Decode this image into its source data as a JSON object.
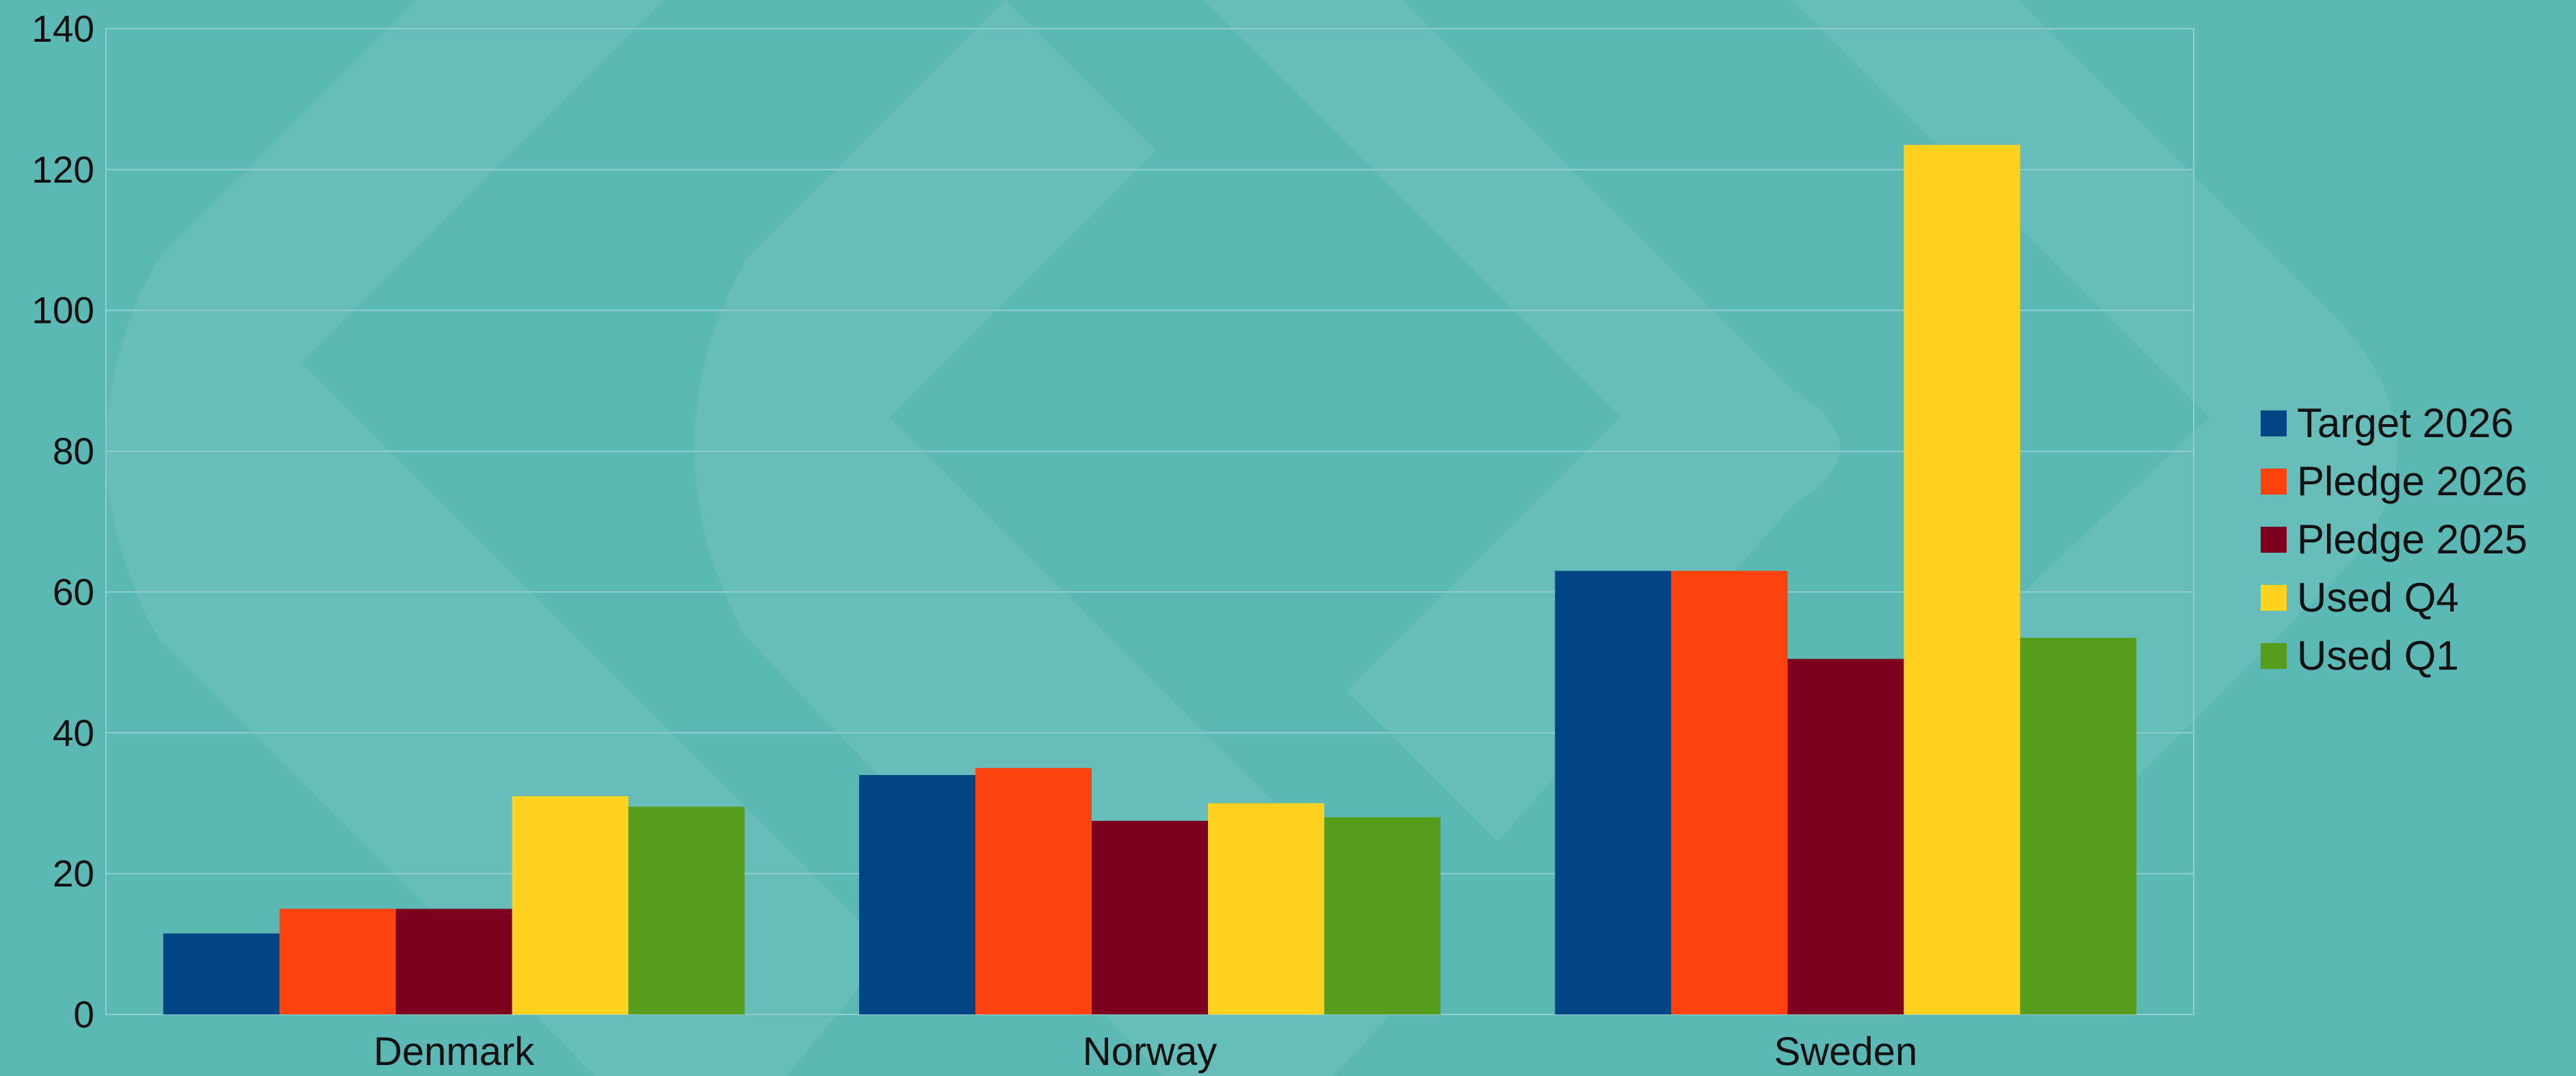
{
  "chart_data": {
    "type": "bar",
    "title": "",
    "xlabel": "",
    "ylabel": "",
    "categories": [
      "Denmark",
      "Norway",
      "Sweden"
    ],
    "ylim": [
      0,
      140
    ],
    "yticks": [
      0,
      20,
      40,
      60,
      80,
      100,
      120,
      140
    ],
    "grid": true,
    "legend_position": "right",
    "series": [
      {
        "name": "Target 2026",
        "color": "#004586",
        "values": [
          11.5,
          34,
          63
        ]
      },
      {
        "name": "Pledge 2026",
        "color": "#ff420e",
        "values": [
          15,
          35,
          63
        ]
      },
      {
        "name": "Pledge 2025",
        "color": "#7e0021",
        "values": [
          15,
          27.5,
          50.5
        ]
      },
      {
        "name": "Used Q4",
        "color": "#ffd320",
        "values": [
          31,
          30,
          123.5
        ]
      },
      {
        "name": "Used Q1",
        "color": "#579d1c",
        "values": [
          29.5,
          28,
          53.5
        ]
      }
    ]
  }
}
